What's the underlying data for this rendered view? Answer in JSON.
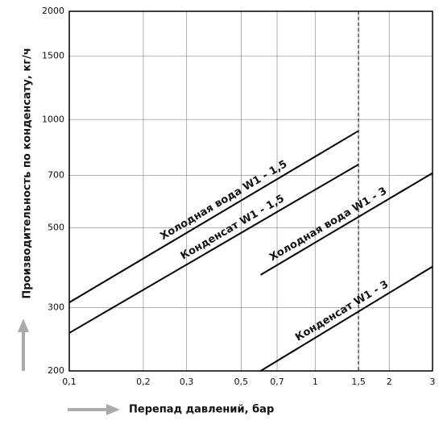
{
  "chart_data": {
    "type": "line",
    "ylabel": "Производительность по конденсату, кг/ч",
    "xlabel": "Перепад давлений, бар",
    "xscale": "log",
    "yscale": "log",
    "grid": true,
    "xlim": [
      0.1,
      3
    ],
    "ylim": [
      200,
      2000
    ],
    "xticks": [
      {
        "value": 0.1,
        "label": "0,1"
      },
      {
        "value": 0.2,
        "label": "0,2"
      },
      {
        "value": 0.3,
        "label": "0,3"
      },
      {
        "value": 0.5,
        "label": "0,5"
      },
      {
        "value": 0.7,
        "label": "0,7"
      },
      1,
      {
        "value": 1.5,
        "label": "1,5"
      },
      2,
      3
    ],
    "yticks": [
      200,
      300,
      500,
      700,
      1000,
      1500,
      2000
    ],
    "reference_x": 1.5,
    "series": [
      {
        "name": "Холодная вода  W1 - 1,5",
        "color": "#000000",
        "x": [
          0.1,
          1.5
        ],
        "values": [
          310,
          930
        ]
      },
      {
        "name": "Конденсат W1 - 1,5",
        "color": "#000000",
        "x": [
          0.1,
          1.5
        ],
        "values": [
          255,
          750
        ]
      },
      {
        "name": "Холодная вода W1 - 3",
        "color": "#000000",
        "x": [
          0.6,
          3
        ],
        "values": [
          370,
          710
        ]
      },
      {
        "name": "Конденсат W1 - 3",
        "color": "#000000",
        "x": [
          0.6,
          3
        ],
        "values": [
          200,
          390
        ]
      }
    ]
  }
}
